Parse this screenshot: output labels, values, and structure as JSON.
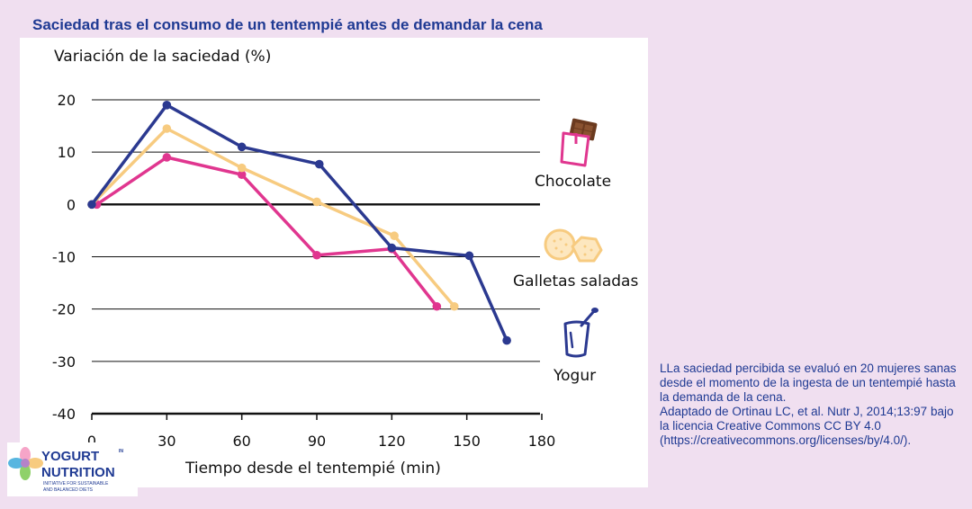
{
  "page_title": "Saciedad tras el consumo de un tentempié antes de demandar la cena",
  "note": "LLa saciedad percibida se evaluó en 20 mujeres sanas desde el momento de la ingesta de un tentempié hasta la demanda de la cena.\nAdaptado de Ortinau LC, et al. Nutr J, 2014;13:97 bajo la licencia Creative Commons CC BY 4.0 (https://creativecommons.org/licenses/by/4.0/).",
  "logo": {
    "line1": "YOGURT",
    "in": "IN",
    "line2": "NUTRITION",
    "tagline1": "INITIATIVE FOR SUSTAINABLE",
    "tagline2": "AND BALANCED DIETS"
  },
  "colors": {
    "chocolate": "#e0368f",
    "galletas": "#f7cb80",
    "yogur": "#2b3990",
    "title": "#1f3a93"
  },
  "icons": {
    "chocolate": "chocolate-bar-icon",
    "galletas": "crackers-icon",
    "yogur": "yogurt-cup-icon"
  },
  "chart_data": {
    "type": "line",
    "ylabel": "Variación de la saciedad (%)",
    "xlabel": "Tiempo desde el tentempié (min)",
    "xlim": [
      0,
      180
    ],
    "ylim": [
      -40,
      20
    ],
    "xticks": [
      0,
      30,
      60,
      90,
      120,
      150,
      180
    ],
    "yticks": [
      20,
      10,
      0,
      -10,
      -20,
      -30,
      -40
    ],
    "grid": "horizontal",
    "legend": "right",
    "series": [
      {
        "name": "Chocolate",
        "key": "chocolate",
        "x": [
          2,
          30,
          60,
          90,
          120,
          138
        ],
        "y": [
          0,
          9,
          5.7,
          -9.7,
          -8.5,
          -19.5
        ]
      },
      {
        "name": "Galletas saladas",
        "key": "galletas",
        "x": [
          0,
          30,
          60,
          90,
          121,
          145
        ],
        "y": [
          0,
          14.5,
          7,
          0.5,
          -6,
          -19.5
        ]
      },
      {
        "name": "Yogur",
        "key": "yogur",
        "x": [
          0,
          30,
          60,
          91,
          120,
          151,
          166
        ],
        "y": [
          0,
          19,
          11,
          7.7,
          -8.3,
          -9.8,
          -26
        ]
      }
    ]
  }
}
